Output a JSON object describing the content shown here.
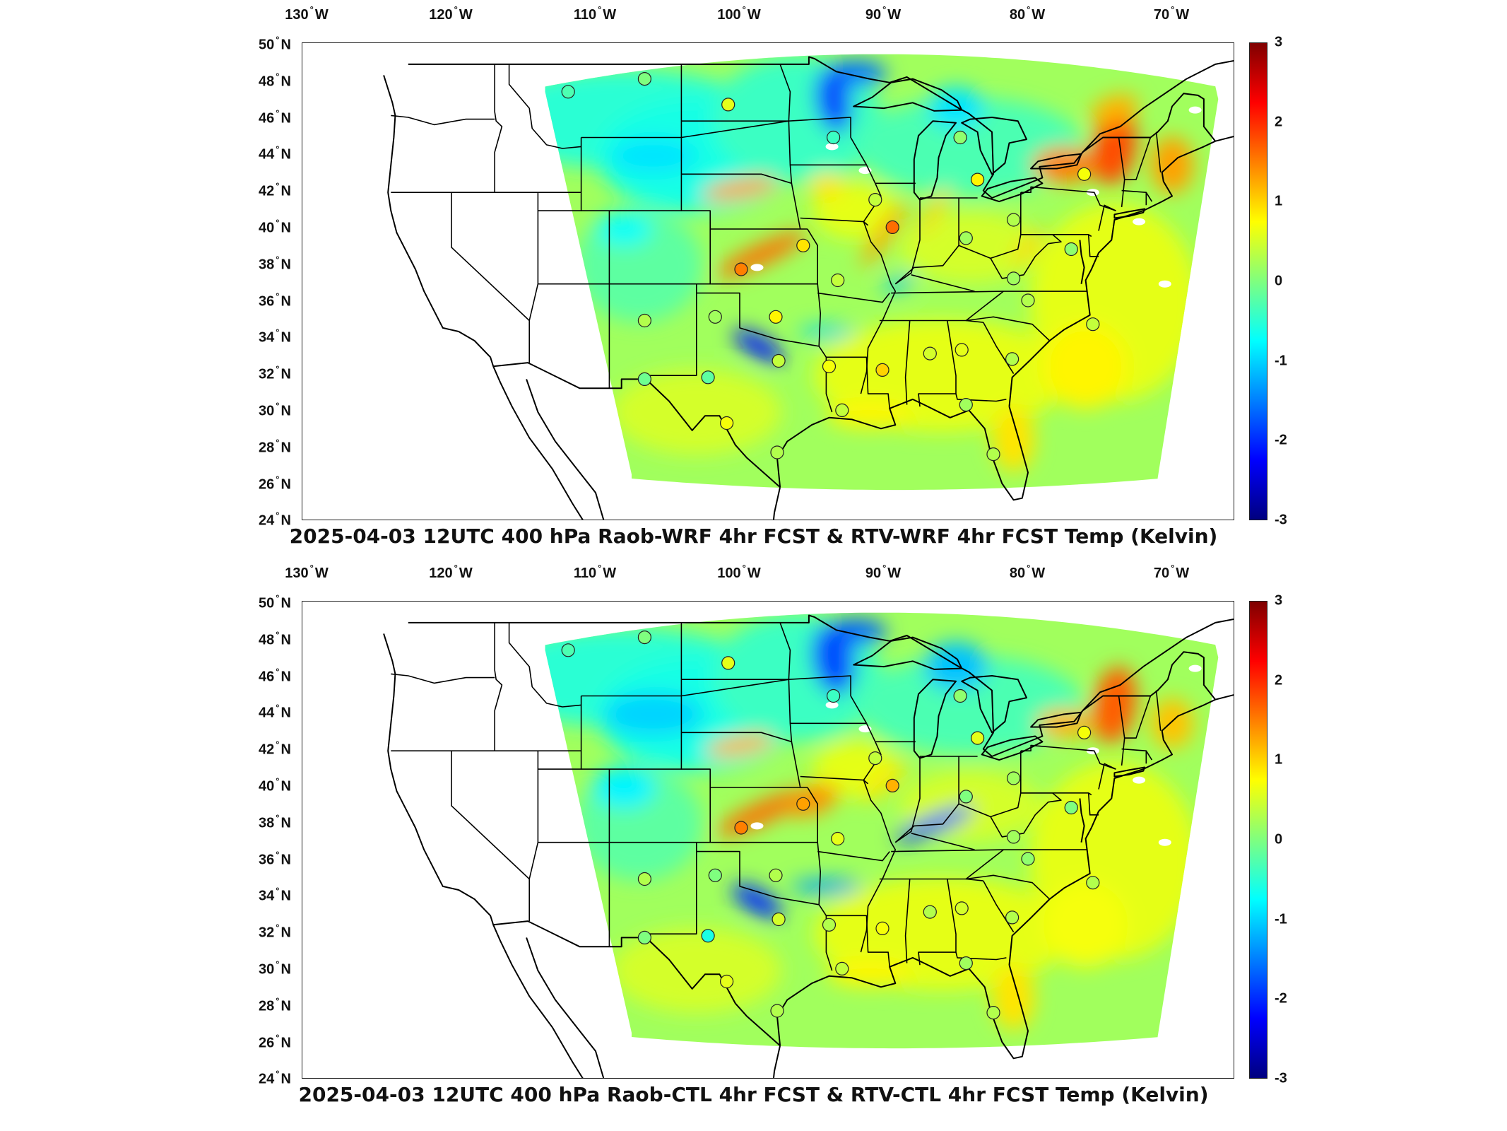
{
  "colors": {
    "land_outline": "#000000",
    "no_data": "#ffffff",
    "colormap": [
      "#00007f",
      "#0000ff",
      "#007fff",
      "#00ffff",
      "#7fff7f",
      "#ffff00",
      "#ff7f00",
      "#ff0000",
      "#7f0000"
    ]
  },
  "map": {
    "lon_ticks": [
      {
        "value": "130",
        "dir": "W"
      },
      {
        "value": "120",
        "dir": "W"
      },
      {
        "value": "110",
        "dir": "W"
      },
      {
        "value": "100",
        "dir": "W"
      },
      {
        "value": "90",
        "dir": "W"
      },
      {
        "value": "80",
        "dir": "W"
      },
      {
        "value": "70",
        "dir": "W"
      }
    ],
    "lat_ticks": [
      {
        "value": "50",
        "dir": "N"
      },
      {
        "value": "48",
        "dir": "N"
      },
      {
        "value": "46",
        "dir": "N"
      },
      {
        "value": "44",
        "dir": "N"
      },
      {
        "value": "42",
        "dir": "N"
      },
      {
        "value": "40",
        "dir": "N"
      },
      {
        "value": "38",
        "dir": "N"
      },
      {
        "value": "36",
        "dir": "N"
      },
      {
        "value": "34",
        "dir": "N"
      },
      {
        "value": "32",
        "dir": "N"
      },
      {
        "value": "30",
        "dir": "N"
      },
      {
        "value": "28",
        "dir": "N"
      },
      {
        "value": "26",
        "dir": "N"
      },
      {
        "value": "24",
        "dir": "N"
      }
    ],
    "degree_symbol": "°",
    "colorbar": {
      "min": -3,
      "max": 3,
      "ticks": [
        "3",
        "2",
        "1",
        "0",
        "-1",
        "-2",
        "-3"
      ],
      "units": "Kelvin"
    }
  },
  "panels": [
    {
      "title": "2025-04-03 12UTC 400 hPa Raob-WRF 4hr FCST & RTV-WRF 4hr FCST Temp (Kelvin)",
      "stations": [
        {
          "lon": -111.9,
          "lat": 47.5,
          "v": -0.3
        },
        {
          "lon": -106.6,
          "lat": 48.2,
          "v": 0.0
        },
        {
          "lon": -100.8,
          "lat": 46.8,
          "v": 0.6
        },
        {
          "lon": -93.5,
          "lat": 45.0,
          "v": -0.4
        },
        {
          "lon": -84.7,
          "lat": 45.0,
          "v": 0.1
        },
        {
          "lon": -83.5,
          "lat": 42.7,
          "v": 0.8
        },
        {
          "lon": -76.1,
          "lat": 43.0,
          "v": 0.7
        },
        {
          "lon": -90.6,
          "lat": 41.6,
          "v": 0.4
        },
        {
          "lon": -89.4,
          "lat": 40.1,
          "v": 1.6
        },
        {
          "lon": -81.0,
          "lat": 40.5,
          "v": 0.3
        },
        {
          "lon": -84.3,
          "lat": 39.5,
          "v": 0.2
        },
        {
          "lon": -95.6,
          "lat": 39.1,
          "v": 0.9
        },
        {
          "lon": -99.9,
          "lat": 37.8,
          "v": 1.5
        },
        {
          "lon": -93.2,
          "lat": 37.2,
          "v": 0.4
        },
        {
          "lon": -81.0,
          "lat": 37.3,
          "v": 0.2
        },
        {
          "lon": -106.6,
          "lat": 35.0,
          "v": 0.3
        },
        {
          "lon": -101.7,
          "lat": 35.2,
          "v": 0.2
        },
        {
          "lon": -97.5,
          "lat": 35.2,
          "v": 0.8
        },
        {
          "lon": -97.3,
          "lat": 32.8,
          "v": 0.4
        },
        {
          "lon": -93.8,
          "lat": 32.5,
          "v": 0.7
        },
        {
          "lon": -90.1,
          "lat": 32.3,
          "v": 1.0
        },
        {
          "lon": -86.8,
          "lat": 33.2,
          "v": 0.5
        },
        {
          "lon": -84.6,
          "lat": 33.4,
          "v": 0.6
        },
        {
          "lon": -81.1,
          "lat": 32.9,
          "v": 0.3
        },
        {
          "lon": -106.6,
          "lat": 31.8,
          "v": -0.1
        },
        {
          "lon": -102.2,
          "lat": 31.9,
          "v": -0.2
        },
        {
          "lon": -100.9,
          "lat": 29.4,
          "v": 0.7
        },
        {
          "lon": -97.4,
          "lat": 27.8,
          "v": 0.3
        },
        {
          "lon": -92.9,
          "lat": 30.1,
          "v": 0.4
        },
        {
          "lon": -84.3,
          "lat": 30.4,
          "v": 0.2
        },
        {
          "lon": -82.4,
          "lat": 27.7,
          "v": 0.3
        },
        {
          "lon": -80.0,
          "lat": 36.1,
          "v": 0.3
        },
        {
          "lon": -77.0,
          "lat": 38.9,
          "v": 0.1
        },
        {
          "lon": -75.5,
          "lat": 34.8,
          "v": 0.4
        }
      ]
    },
    {
      "title": "2025-04-03 12UTC 400 hPa Raob-CTL 4hr FCST & RTV-CTL 4hr FCST Temp (Kelvin)",
      "stations": [
        {
          "lon": -111.9,
          "lat": 47.5,
          "v": -0.3
        },
        {
          "lon": -106.6,
          "lat": 48.2,
          "v": 0.0
        },
        {
          "lon": -100.8,
          "lat": 46.8,
          "v": 0.6
        },
        {
          "lon": -93.5,
          "lat": 45.0,
          "v": -0.4
        },
        {
          "lon": -84.7,
          "lat": 45.0,
          "v": 0.1
        },
        {
          "lon": -83.5,
          "lat": 42.7,
          "v": 0.6
        },
        {
          "lon": -76.1,
          "lat": 43.0,
          "v": 0.7
        },
        {
          "lon": -90.6,
          "lat": 41.6,
          "v": 0.4
        },
        {
          "lon": -89.4,
          "lat": 40.1,
          "v": 1.2
        },
        {
          "lon": -81.0,
          "lat": 40.5,
          "v": 0.2
        },
        {
          "lon": -84.3,
          "lat": 39.5,
          "v": 0.0
        },
        {
          "lon": -95.6,
          "lat": 39.1,
          "v": 1.3
        },
        {
          "lon": -99.9,
          "lat": 37.8,
          "v": 1.5
        },
        {
          "lon": -93.2,
          "lat": 37.2,
          "v": 0.6
        },
        {
          "lon": -81.0,
          "lat": 37.3,
          "v": 0.2
        },
        {
          "lon": -106.6,
          "lat": 35.0,
          "v": 0.3
        },
        {
          "lon": -101.7,
          "lat": 35.2,
          "v": 0.0
        },
        {
          "lon": -97.5,
          "lat": 35.2,
          "v": 0.3
        },
        {
          "lon": -97.3,
          "lat": 32.8,
          "v": 0.5
        },
        {
          "lon": -93.8,
          "lat": 32.5,
          "v": 0.3
        },
        {
          "lon": -90.1,
          "lat": 32.3,
          "v": 0.7
        },
        {
          "lon": -86.8,
          "lat": 33.2,
          "v": 0.3
        },
        {
          "lon": -84.6,
          "lat": 33.4,
          "v": 0.5
        },
        {
          "lon": -81.1,
          "lat": 32.9,
          "v": 0.3
        },
        {
          "lon": -106.6,
          "lat": 31.8,
          "v": 0.0
        },
        {
          "lon": -102.2,
          "lat": 31.9,
          "v": -0.6
        },
        {
          "lon": -100.9,
          "lat": 29.4,
          "v": 0.6
        },
        {
          "lon": -97.4,
          "lat": 27.8,
          "v": 0.3
        },
        {
          "lon": -92.9,
          "lat": 30.1,
          "v": 0.4
        },
        {
          "lon": -84.3,
          "lat": 30.4,
          "v": 0.2
        },
        {
          "lon": -82.4,
          "lat": 27.7,
          "v": 0.3
        },
        {
          "lon": -80.0,
          "lat": 36.1,
          "v": 0.1
        },
        {
          "lon": -77.0,
          "lat": 38.9,
          "v": 0.0
        },
        {
          "lon": -75.5,
          "lat": 34.8,
          "v": 0.3
        }
      ]
    }
  ]
}
